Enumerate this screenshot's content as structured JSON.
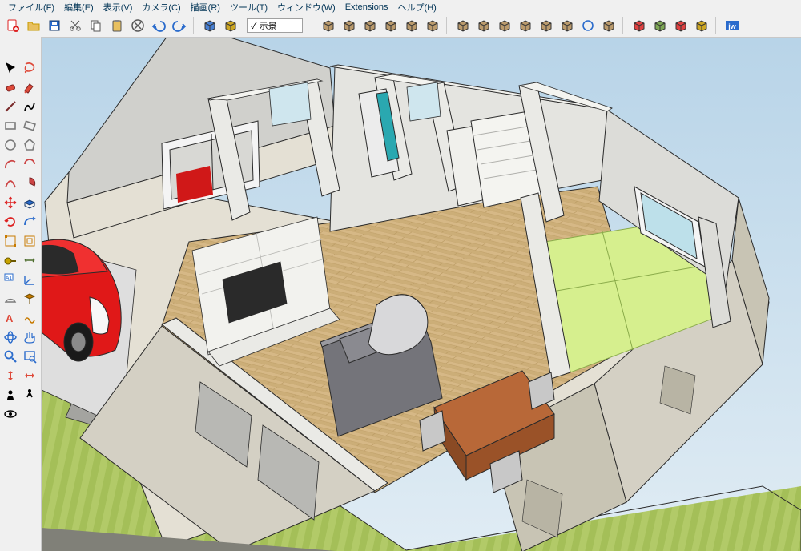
{
  "menu": {
    "file": "ファイル(F)",
    "edit": "編集(E)",
    "view": "表示(V)",
    "camera": "カメラ(C)",
    "draw": "描画(R)",
    "tools": "ツール(T)",
    "window": "ウィンドウ(W)",
    "extensions": "Extensions",
    "help": "ヘルプ(H)"
  },
  "scene_label": "✓  示景",
  "left_tools": [
    [
      "select",
      "lasso"
    ],
    [
      "eraser",
      "paint"
    ],
    [
      "line",
      "freehand"
    ],
    [
      "rect",
      "rotrect"
    ],
    [
      "circle",
      "polygon"
    ],
    [
      "arc",
      "arc2"
    ],
    [
      "curve",
      "pie"
    ],
    [
      "move",
      "pushpull"
    ],
    [
      "rotate",
      "followme"
    ],
    [
      "scale",
      "offset"
    ],
    [
      "tape",
      "dimension"
    ],
    [
      "text",
      "axes"
    ],
    [
      "protractor",
      "section"
    ],
    [
      "3dtext",
      "sandbox"
    ],
    [
      "orbit",
      "pan"
    ],
    [
      "zoom",
      "zoomwin"
    ],
    [
      "zoomext",
      "prev"
    ],
    [
      "position",
      "walk"
    ],
    [
      "look",
      ""
    ]
  ],
  "left_icon_colors": [
    [
      "#000000",
      "#de4a3a"
    ],
    [
      "#de4a3a",
      "#de4a3a"
    ],
    [
      "#7a2a2a",
      "#000000"
    ],
    [
      "#7a7a7a",
      "#7a7a7a"
    ],
    [
      "#7a7a7a",
      "#7a7a7a"
    ],
    [
      "#c44",
      "#c44"
    ],
    [
      "#c44",
      "#c44"
    ],
    [
      "#d22",
      "#2a6bcc"
    ],
    [
      "#d22",
      "#2a6bcc"
    ],
    [
      "#c77a00",
      "#c77a00"
    ],
    [
      "#c7a300",
      "#4a6b2a"
    ],
    [
      "#2a6bcc",
      "#2a6bcc"
    ],
    [
      "#7a7a7a",
      "#c77a00"
    ],
    [
      "#de4a3a",
      "#c77a00"
    ],
    [
      "#2a6bcc",
      "#2a6bcc"
    ],
    [
      "#2a6bcc",
      "#2a6bcc"
    ],
    [
      "#de4a3a",
      "#de4a3a"
    ],
    [
      "#000000",
      "#000000"
    ],
    [
      "#000000",
      ""
    ]
  ],
  "top_groups": [
    {
      "name": "standard",
      "icons": [
        "new",
        "open",
        "save",
        "cut",
        "copy",
        "paste",
        "delete",
        "undo",
        "redo"
      ],
      "colors": [
        "#d22",
        "#c79a00",
        "#2a6bcc",
        "#555555",
        "#555555",
        "#555555",
        "#555555",
        "#2a6bcc",
        "#2a6bcc"
      ]
    },
    {
      "name": "model",
      "icons": [
        "model",
        "slot"
      ],
      "colors": [
        "#2a6bcc",
        "#c79a00"
      ]
    },
    {
      "name": "views",
      "icons": [
        "iso",
        "top",
        "front",
        "right",
        "back",
        "left"
      ],
      "colors": [
        "#b08b55",
        "#b08b55",
        "#b08b55",
        "#b08b55",
        "#b08b55",
        "#b08b55"
      ]
    },
    {
      "name": "display",
      "icons": [
        "outliner",
        "components",
        "materials",
        "styles",
        "layers",
        "shadows",
        "fog",
        "scenes"
      ],
      "colors": [
        "#b08b55",
        "#b08b55",
        "#b08b55",
        "#b08b55",
        "#b08b55",
        "#b08b55",
        "#2a6bcc",
        "#b08b55"
      ]
    },
    {
      "name": "warehouse",
      "icons": [
        "3dwh",
        "share",
        "extwh",
        "extmgr"
      ],
      "colors": [
        "#d22",
        "#6a9a3a",
        "#d22",
        "#c79a00"
      ]
    },
    {
      "name": "jw",
      "icons": [
        "jw"
      ],
      "colors": [
        "#2a6bcc"
      ]
    }
  ],
  "viewport_colors": {
    "sky_top": "#b8d4e8",
    "sky_bot": "#d8e8f0",
    "ground": "#e8ebe6",
    "grass_light": "#b8d070",
    "grass_dark": "#9ab858",
    "floor": "#d4b584",
    "floor_stroke": "#b89860",
    "tatami": "#d8f090",
    "wall": "#e8e8e4",
    "wall_shadow": "#c8c8c4",
    "wall_top": "#f0f0ec",
    "wall_outer": "#d4d0c4",
    "wall_outer_top": "#e4e0d4",
    "car": "#e01818",
    "car_shadow": "#a01010",
    "car_window": "#2a2a2a",
    "sofa": "#6a6a6e",
    "sofa_light": "#9a9a9e",
    "table": "#a0522a",
    "table_top": "#b86838",
    "stone": "#9a9a98",
    "door_glass": "#2aa8b0",
    "line": "#303030"
  }
}
